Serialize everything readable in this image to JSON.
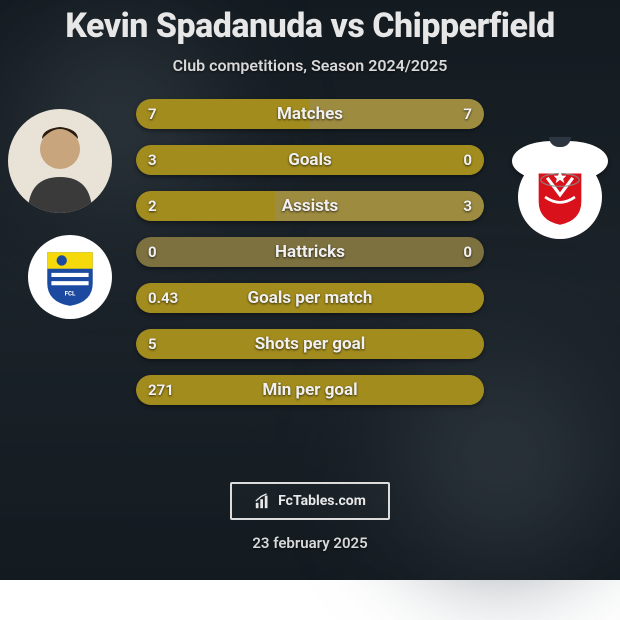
{
  "header": {
    "title": "Kevin Spadanuda vs Chipperfield",
    "subtitle": "Club competitions, Season 2024/2025"
  },
  "colors": {
    "left_fill": "#a28c1e",
    "right_fill": "#9d8b40",
    "track": "#7d7140",
    "title_color": "#e7e7e7",
    "text_color": "#f0f0f0"
  },
  "players": {
    "left": {
      "name": "Kevin Spadanuda",
      "photo_bg": "#e9e2d6",
      "shirt_color": "#ffffff",
      "club_badge_bg": "#ffffff",
      "club_primary": "#1b4aa0",
      "club_secondary": "#f5d90a"
    },
    "right": {
      "name": "Chipperfield",
      "photo_bg_missing": true,
      "shirt_color": "#ffffff",
      "club_badge_bg": "#ffffff",
      "club_primary": "#d8111a",
      "club_secondary": "#ffffff"
    }
  },
  "bars": [
    {
      "label": "Matches",
      "left": "7",
      "right": "7",
      "left_pct": 50,
      "right_pct": 50
    },
    {
      "label": "Goals",
      "left": "3",
      "right": "0",
      "left_pct": 100,
      "right_pct": 0
    },
    {
      "label": "Assists",
      "left": "2",
      "right": "3",
      "left_pct": 40,
      "right_pct": 60
    },
    {
      "label": "Hattricks",
      "left": "0",
      "right": "0",
      "left_pct": 0,
      "right_pct": 0
    },
    {
      "label": "Goals per match",
      "left": "0.43",
      "right": "",
      "left_pct": 100,
      "right_pct": 0
    },
    {
      "label": "Shots per goal",
      "left": "5",
      "right": "",
      "left_pct": 100,
      "right_pct": 0
    },
    {
      "label": "Min per goal",
      "left": "271",
      "right": "",
      "left_pct": 100,
      "right_pct": 0
    }
  ],
  "footer": {
    "brand": "FcTables.com",
    "date": "23 february 2025"
  }
}
